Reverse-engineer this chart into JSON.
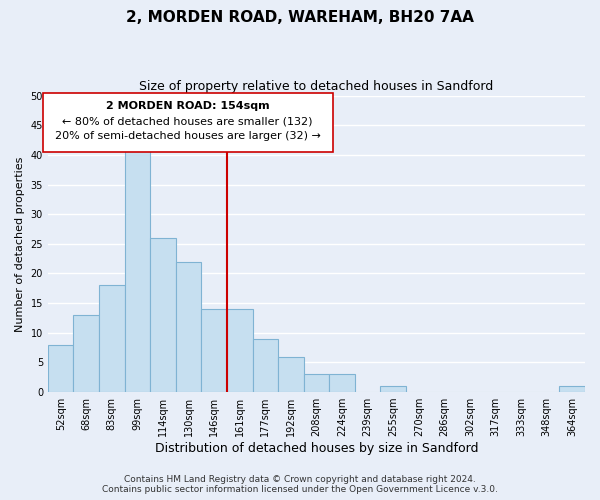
{
  "title": "2, MORDEN ROAD, WAREHAM, BH20 7AA",
  "subtitle": "Size of property relative to detached houses in Sandford",
  "xlabel": "Distribution of detached houses by size in Sandford",
  "ylabel": "Number of detached properties",
  "bar_labels": [
    "52sqm",
    "68sqm",
    "83sqm",
    "99sqm",
    "114sqm",
    "130sqm",
    "146sqm",
    "161sqm",
    "177sqm",
    "192sqm",
    "208sqm",
    "224sqm",
    "239sqm",
    "255sqm",
    "270sqm",
    "286sqm",
    "302sqm",
    "317sqm",
    "333sqm",
    "348sqm",
    "364sqm"
  ],
  "bar_values": [
    8,
    13,
    18,
    41,
    26,
    22,
    14,
    14,
    9,
    6,
    3,
    3,
    0,
    1,
    0,
    0,
    0,
    0,
    0,
    0,
    1
  ],
  "bar_color": "#c6dff0",
  "bar_edge_color": "#7fb3d3",
  "vline_color": "#cc0000",
  "annotation_title": "2 MORDEN ROAD: 154sqm",
  "annotation_line1": "← 80% of detached houses are smaller (132)",
  "annotation_line2": "20% of semi-detached houses are larger (32) →",
  "annotation_box_color": "#ffffff",
  "annotation_box_edge": "#cc0000",
  "ylim": [
    0,
    50
  ],
  "footer1": "Contains HM Land Registry data © Crown copyright and database right 2024.",
  "footer2": "Contains public sector information licensed under the Open Government Licence v.3.0.",
  "bg_color": "#e8eef8",
  "plot_bg_color": "#e8eef8",
  "grid_color": "#ffffff",
  "title_fontsize": 11,
  "subtitle_fontsize": 9,
  "xlabel_fontsize": 9,
  "ylabel_fontsize": 8,
  "tick_fontsize": 7,
  "footer_fontsize": 6.5,
  "annotation_title_fontsize": 8,
  "annotation_text_fontsize": 8
}
